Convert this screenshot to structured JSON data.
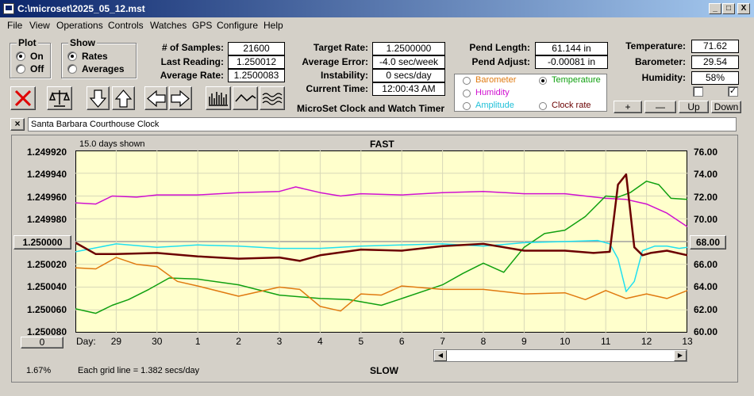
{
  "window": {
    "title": "C:\\microset\\2025_05_12.mst",
    "minimize": "_",
    "maximize": "□",
    "close": "X"
  },
  "menu": [
    "File",
    "View",
    "Operations",
    "Controls",
    "Watches",
    "GPS",
    "Configure",
    "Help"
  ],
  "plot_group": {
    "title": "Plot",
    "on": "On",
    "off": "Off",
    "selected": "On"
  },
  "show_group": {
    "title": "Show",
    "rates": "Rates",
    "averages": "Averages",
    "selected": "Rates"
  },
  "stats": {
    "samples_label": "# of Samples:",
    "samples": "21600",
    "last_label": "Last Reading:",
    "last": "1.250012",
    "avg_rate_label": "Average Rate:",
    "avg_rate": "1.2500083",
    "target_label": "Target Rate:",
    "target": "1.2500000",
    "avg_error_label": "Average Error:",
    "avg_error": "-4.0 sec/week",
    "instability_label": "Instability:",
    "instability": "0 secs/day",
    "time_label": "Current Time:",
    "time": "12:00:43 AM",
    "pend_length_label": "Pend Length:",
    "pend_length": "61.144 in",
    "pend_adjust_label": "Pend Adjust:",
    "pend_adjust": "-0.00081 in",
    "temperature_label": "Temperature:",
    "temperature": "71.62",
    "barometer_label": "Barometer:",
    "barometer": "29.54",
    "humidity_label": "Humidity:",
    "humidity": "58%"
  },
  "app_caption": "MicroSet Clock and Watch Timer",
  "legend": {
    "barometer": "Barometer",
    "temperature": "Temperature",
    "humidity": "Humidity",
    "amplitude": "Amplitude",
    "clock_rate": "Clock rate",
    "selected": "Temperature"
  },
  "colors": {
    "barometer": "#e07a10",
    "temperature": "#10a010",
    "humidity": "#d010d0",
    "amplitude": "#20e0f0",
    "rate": "#6b0000"
  },
  "buttons": {
    "plus": "+",
    "minus": "—",
    "up": "Up",
    "down": "Down"
  },
  "checkboxes": [
    {
      "checked": false
    },
    {
      "checked": true
    }
  ],
  "clock_name": "Santa Barbara Courthouse Clock",
  "clock_name_close": "×",
  "chart_header": {
    "days_shown": "15.0 days shown",
    "fast": "FAST",
    "slow": "SLOW",
    "grid_note": "Each grid line = 1.382 secs/day",
    "day_label": "Day:",
    "percent": "1.67%",
    "left_button": "1.250000",
    "right_button": "68.00",
    "zero_button": "0"
  },
  "chart_data": {
    "type": "line",
    "y_left_ticks": [
      "1.249920",
      "1.249940",
      "1.249960",
      "1.249980",
      "1.250000",
      "1.250020",
      "1.250040",
      "1.250060",
      "1.250080"
    ],
    "y_right_ticks": [
      "76.00",
      "74.00",
      "72.00",
      "70.00",
      "68.00",
      "66.00",
      "64.00",
      "62.00",
      "60.00"
    ],
    "x_ticks": [
      "29",
      "30",
      "1",
      "2",
      "3",
      "4",
      "5",
      "6",
      "7",
      "8",
      "9",
      "10",
      "11",
      "12",
      "13"
    ],
    "x_range": [
      28,
      43
    ],
    "y_right_range": [
      60,
      76
    ],
    "series": [
      {
        "name": "Humidity",
        "color": "#d010d0",
        "x": [
          28,
          28.5,
          28.9,
          29.5,
          30,
          31,
          32,
          33,
          33.4,
          34,
          34.5,
          35,
          36,
          37,
          38,
          39,
          40,
          41,
          41.5,
          42,
          42.5,
          43
        ],
        "y": [
          71.4,
          71.3,
          72.0,
          71.9,
          72.1,
          72.1,
          72.3,
          72.4,
          72.8,
          72.3,
          72.0,
          72.2,
          72.1,
          72.3,
          72.4,
          72.2,
          72.2,
          71.8,
          71.7,
          71.3,
          70.5,
          69.3
        ]
      },
      {
        "name": "Temperature",
        "color": "#10a010",
        "x": [
          28,
          28.5,
          28.9,
          29.3,
          29.8,
          30.3,
          31,
          32,
          33,
          34,
          34.7,
          35.5,
          36,
          37,
          37.5,
          38,
          38.5,
          39,
          39.5,
          40,
          40.5,
          41,
          41.3,
          41.6,
          42,
          42.3,
          42.6,
          43
        ],
        "y": [
          62.1,
          61.7,
          62.4,
          62.9,
          63.8,
          64.8,
          64.7,
          64.2,
          63.3,
          63.0,
          62.9,
          62.4,
          63.0,
          64.2,
          65.2,
          66.1,
          65.3,
          67.5,
          68.7,
          69.0,
          70.2,
          72.0,
          71.9,
          72.3,
          73.3,
          73.0,
          71.8,
          71.7
        ]
      },
      {
        "name": "Barometer",
        "color": "#e07a10",
        "x": [
          28,
          28.5,
          29,
          29.5,
          30,
          30.5,
          31,
          32,
          33,
          33.5,
          34,
          34.5,
          35,
          35.5,
          36,
          37,
          38,
          39,
          40,
          40.5,
          41,
          41.5,
          42,
          42.5,
          43
        ],
        "y": [
          65.7,
          65.6,
          66.6,
          66.0,
          65.8,
          64.5,
          64.1,
          63.2,
          64.0,
          63.8,
          62.3,
          61.9,
          63.4,
          63.3,
          64.1,
          63.8,
          63.8,
          63.4,
          63.5,
          62.9,
          63.7,
          63.0,
          63.4,
          63.0,
          63.7
        ]
      },
      {
        "name": "Amplitude",
        "color": "#20e0f0",
        "x": [
          28,
          29,
          30,
          31,
          32,
          33,
          34,
          35,
          36,
          37,
          38,
          39,
          40,
          40.8,
          41.1,
          41.3,
          41.5,
          41.7,
          41.9,
          42.2,
          42.5,
          42.8,
          43
        ],
        "y": [
          67.1,
          67.8,
          67.5,
          67.7,
          67.6,
          67.4,
          67.4,
          67.6,
          67.7,
          67.8,
          67.6,
          67.9,
          68.0,
          68.1,
          67.8,
          66.5,
          63.6,
          64.5,
          67.2,
          67.6,
          67.6,
          67.4,
          67.5
        ]
      },
      {
        "name": "Clock rate",
        "color": "#6b0000",
        "x": [
          28,
          28.5,
          29,
          30,
          31,
          32,
          33,
          33.5,
          34,
          35,
          36,
          37,
          38,
          39,
          40,
          40.7,
          41.1,
          41.3,
          41.5,
          41.7,
          41.9,
          42.1,
          42.5,
          43
        ],
        "y": [
          67.9,
          66.9,
          66.9,
          67.0,
          66.7,
          66.5,
          66.6,
          66.3,
          66.8,
          67.3,
          67.2,
          67.6,
          67.8,
          67.2,
          67.2,
          67.0,
          67.1,
          73.0,
          73.9,
          67.5,
          66.8,
          67.0,
          67.2,
          66.8
        ]
      }
    ]
  }
}
